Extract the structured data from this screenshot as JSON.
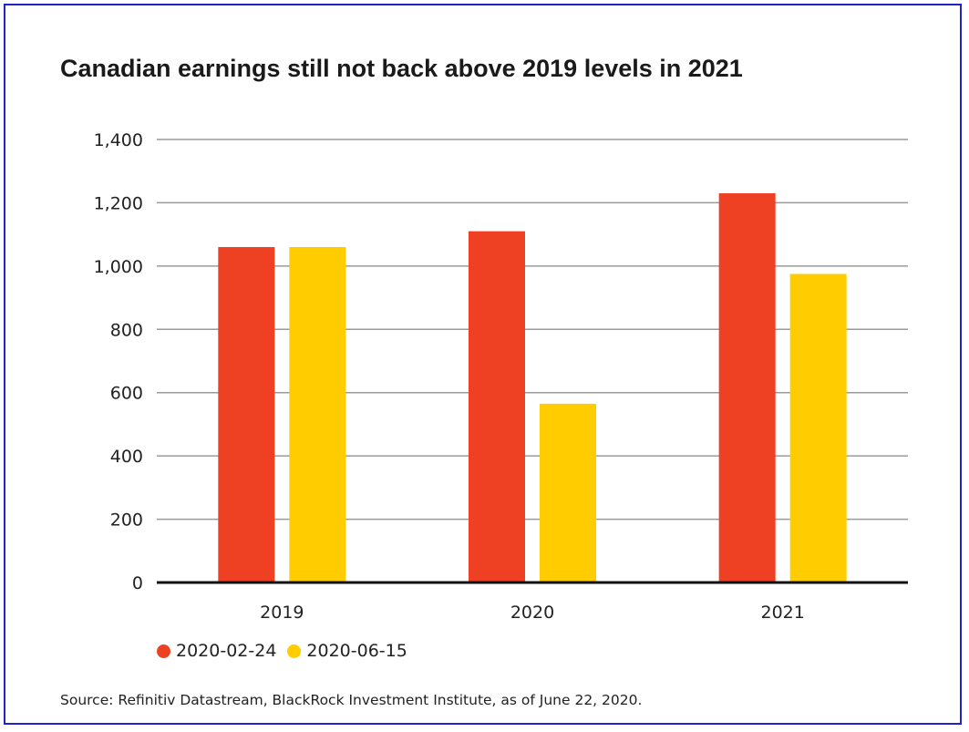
{
  "chart_data": {
    "type": "bar",
    "title": "Canadian earnings still not back above 2019 levels in 2021",
    "categories": [
      "2019",
      "2020",
      "2021"
    ],
    "series": [
      {
        "name": "2020-02-24",
        "color": "#ee4123",
        "values": [
          1060,
          1110,
          1230
        ]
      },
      {
        "name": "2020-06-15",
        "color": "#ffcc00",
        "values": [
          1060,
          565,
          975
        ]
      }
    ],
    "ylim": [
      0,
      1400
    ],
    "yticks": [
      0,
      200,
      400,
      600,
      800,
      1000,
      1200,
      1400
    ],
    "ytick_labels": [
      "0",
      "200",
      "400",
      "600",
      "800",
      "1,000",
      "1,200",
      "1,400"
    ],
    "xlabel": "",
    "ylabel": "",
    "grid": true,
    "legend_position": "bottom-left"
  },
  "source": "Source: Refinitiv Datastream, BlackRock Investment Institute, as of June 22, 2020.",
  "frame_color": "#1e24c8"
}
